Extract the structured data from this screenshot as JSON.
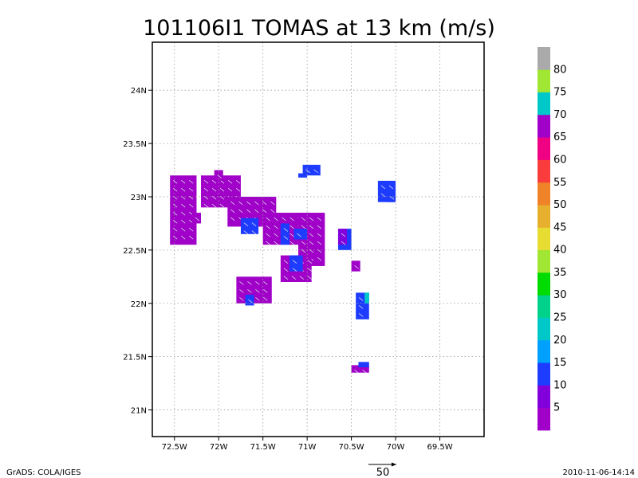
{
  "chart_data": {
    "type": "heatmap",
    "title": "101106I1 TOMAS at 13 km (m/s)",
    "xlim": [
      -72.75,
      -69.0
    ],
    "ylim": [
      20.75,
      24.45
    ],
    "grid": true,
    "x_ticks": [
      {
        "value": -72.5,
        "label": "72.5W"
      },
      {
        "value": -72.0,
        "label": "72W"
      },
      {
        "value": -71.5,
        "label": "71.5W"
      },
      {
        "value": -71.0,
        "label": "71W"
      },
      {
        "value": -70.5,
        "label": "70.5W"
      },
      {
        "value": -70.0,
        "label": "70W"
      },
      {
        "value": -69.5,
        "label": "69.5W"
      }
    ],
    "y_ticks": [
      {
        "value": 21.0,
        "label": "21N"
      },
      {
        "value": 21.5,
        "label": "21.5N"
      },
      {
        "value": 22.0,
        "label": "22N"
      },
      {
        "value": 22.5,
        "label": "22.5N"
      },
      {
        "value": 23.0,
        "label": "23N"
      },
      {
        "value": 23.5,
        "label": "23.5N"
      },
      {
        "value": 24.0,
        "label": "24N"
      }
    ],
    "colorbar": {
      "colors": [
        "#a000c8",
        "#8200dc",
        "#1e3cff",
        "#00a0ff",
        "#00c8c8",
        "#00d28c",
        "#00dc00",
        "#a0e632",
        "#e6dc32",
        "#e6af2d",
        "#f08228",
        "#fa3c3c",
        "#f00082",
        "#a000c8",
        "#00c8c8",
        "#a0e632",
        "#aaaaaa"
      ],
      "labels": [
        "5",
        "10",
        "15",
        "20",
        "25",
        "30",
        "35",
        "40",
        "45",
        "50",
        "55",
        "60",
        "65",
        "70",
        "75",
        "80"
      ]
    },
    "regions": [
      {
        "lon": [
          -72.55,
          -72.25
        ],
        "lat": [
          22.55,
          23.2
        ],
        "value": 4
      },
      {
        "lon": [
          -72.3,
          -72.2
        ],
        "lat": [
          22.75,
          22.85
        ],
        "value": 4
      },
      {
        "lon": [
          -72.2,
          -71.75
        ],
        "lat": [
          22.9,
          23.2
        ],
        "value": 4
      },
      {
        "lon": [
          -72.05,
          -71.95
        ],
        "lat": [
          23.15,
          23.25
        ],
        "value": 4
      },
      {
        "lon": [
          -71.9,
          -71.35
        ],
        "lat": [
          22.72,
          23.0
        ],
        "value": 4
      },
      {
        "lon": [
          -71.75,
          -71.55
        ],
        "lat": [
          22.65,
          22.8
        ],
        "value": 12
      },
      {
        "lon": [
          -71.5,
          -70.95
        ],
        "lat": [
          22.55,
          22.85
        ],
        "value": 4
      },
      {
        "lon": [
          -71.3,
          -71.2
        ],
        "lat": [
          22.55,
          22.75
        ],
        "value": 12
      },
      {
        "lon": [
          -71.1,
          -70.8
        ],
        "lat": [
          22.35,
          22.85
        ],
        "value": 4
      },
      {
        "lon": [
          -71.15,
          -71.0
        ],
        "lat": [
          22.6,
          22.7
        ],
        "value": 12
      },
      {
        "lon": [
          -71.3,
          -70.95
        ],
        "lat": [
          22.2,
          22.45
        ],
        "value": 4
      },
      {
        "lon": [
          -71.2,
          -71.05
        ],
        "lat": [
          22.3,
          22.45
        ],
        "value": 12
      },
      {
        "lon": [
          -71.05,
          -70.85
        ],
        "lat": [
          23.2,
          23.3
        ],
        "value": 12
      },
      {
        "lon": [
          -71.1,
          -71.0
        ],
        "lat": [
          23.18,
          23.22
        ],
        "value": 12
      },
      {
        "lon": [
          -70.65,
          -70.5
        ],
        "lat": [
          22.5,
          22.7
        ],
        "value": 12
      },
      {
        "lon": [
          -70.65,
          -70.55
        ],
        "lat": [
          22.55,
          22.7
        ],
        "value": 6
      },
      {
        "lon": [
          -70.5,
          -70.4
        ],
        "lat": [
          22.3,
          22.4
        ],
        "value": 4
      },
      {
        "lon": [
          -71.8,
          -71.4
        ],
        "lat": [
          22.0,
          22.25
        ],
        "value": 4
      },
      {
        "lon": [
          -71.7,
          -71.6
        ],
        "lat": [
          21.98,
          22.08
        ],
        "value": 12
      },
      {
        "lon": [
          -70.45,
          -70.3
        ],
        "lat": [
          21.85,
          22.1
        ],
        "value": 12
      },
      {
        "lon": [
          -70.35,
          -70.3
        ],
        "lat": [
          22.0,
          22.1
        ],
        "value": 20
      },
      {
        "lon": [
          -70.5,
          -70.3
        ],
        "lat": [
          21.35,
          21.42
        ],
        "value": 4
      },
      {
        "lon": [
          -70.42,
          -70.3
        ],
        "lat": [
          21.4,
          21.45
        ],
        "value": 12
      },
      {
        "lon": [
          -70.2,
          -70.0
        ],
        "lat": [
          22.95,
          23.15
        ],
        "value": 12
      },
      {
        "lon": [
          -70.1,
          -70.0
        ],
        "lat": [
          22.95,
          23.05
        ],
        "value": 12
      }
    ]
  },
  "footer": {
    "left_text": "GrADS: COLA/IGES",
    "right_text": "2010-11-06-14:14",
    "vector_reference": "50"
  }
}
